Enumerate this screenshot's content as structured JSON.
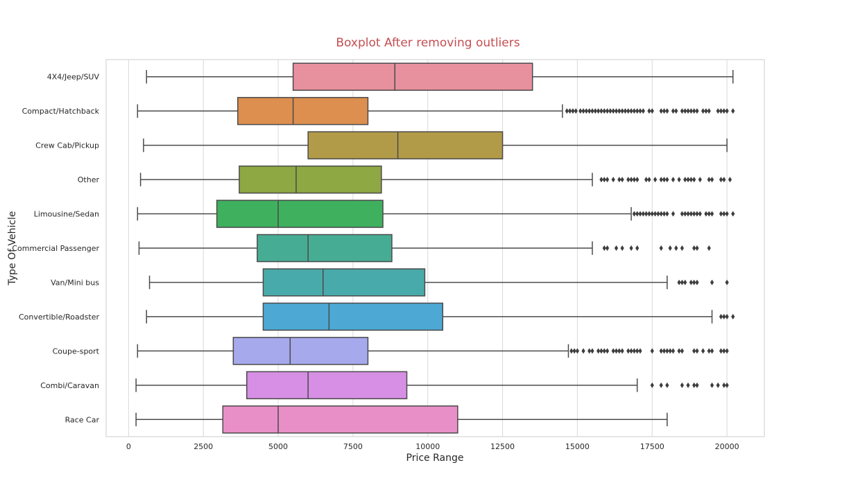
{
  "chart_data": {
    "type": "boxplot",
    "orientation": "horizontal",
    "title": "Boxplot After removing outliers",
    "xlabel": "Price Range",
    "ylabel": "Type Of Vehicle",
    "xlim": [
      -750,
      21250
    ],
    "xticks": [
      0,
      2500,
      5000,
      7500,
      10000,
      12500,
      15000,
      17500,
      20000
    ],
    "grid": "vertical",
    "categories": [
      "4X4/Jeep/SUV",
      "Compact/Hatchback",
      "Crew Cab/Pickup",
      "Other",
      "Limousine/Sedan",
      "Commercial Passenger",
      "Van/Mini bus",
      "Convertible/Roadster",
      "Coupe-sport",
      "Combi/Caravan",
      "Race Car"
    ],
    "series": [
      {
        "category": "4X4/Jeep/SUV",
        "color": "#e8919e",
        "whisker_low": 600,
        "q1": 5500,
        "median": 8900,
        "q3": 13500,
        "whisker_high": 20200,
        "outliers": []
      },
      {
        "category": "Compact/Hatchback",
        "color": "#dc8f4f",
        "whisker_low": 300,
        "q1": 3650,
        "median": 5500,
        "q3": 8000,
        "whisker_high": 14500,
        "outliers": [
          14650,
          14750,
          14850,
          14950,
          15100,
          15200,
          15300,
          15400,
          15500,
          15600,
          15700,
          15800,
          15900,
          16000,
          16100,
          16200,
          16300,
          16400,
          16500,
          16600,
          16700,
          16800,
          16900,
          17000,
          17100,
          17200,
          17400,
          17500,
          17800,
          17900,
          18000,
          18200,
          18300,
          18500,
          18600,
          18700,
          18800,
          18900,
          19000,
          19200,
          19300,
          19400,
          19700,
          19800,
          19900,
          20000,
          20200
        ]
      },
      {
        "category": "Crew Cab/Pickup",
        "color": "#b29b48",
        "whisker_low": 500,
        "q1": 6000,
        "median": 9000,
        "q3": 12500,
        "whisker_high": 20000,
        "outliers": []
      },
      {
        "category": "Other",
        "color": "#8ea843",
        "whisker_low": 400,
        "q1": 3700,
        "median": 5600,
        "q3": 8450,
        "whisker_high": 15500,
        "outliers": [
          15800,
          15900,
          16000,
          16200,
          16400,
          16500,
          16700,
          16800,
          16900,
          17000,
          17300,
          17400,
          17600,
          17800,
          17900,
          18000,
          18200,
          18400,
          18600,
          18700,
          18800,
          18900,
          19100,
          19400,
          19500,
          19800,
          19900,
          20100
        ]
      },
      {
        "category": "Limousine/Sedan",
        "color": "#3fb15e",
        "whisker_low": 300,
        "q1": 2950,
        "median": 5000,
        "q3": 8500,
        "whisker_high": 16800,
        "outliers": [
          16900,
          17000,
          17100,
          17200,
          17300,
          17400,
          17500,
          17600,
          17700,
          17800,
          17900,
          18000,
          18200,
          18500,
          18600,
          18700,
          18800,
          18900,
          19000,
          19100,
          19300,
          19400,
          19500,
          19800,
          19900,
          20000,
          20200
        ]
      },
      {
        "category": "Commercial Passenger",
        "color": "#47ac94",
        "whisker_low": 350,
        "q1": 4300,
        "median": 6000,
        "q3": 8800,
        "whisker_high": 15500,
        "outliers": [
          15900,
          16000,
          16300,
          16500,
          16800,
          17000,
          17800,
          18100,
          18300,
          18500,
          18900,
          19000,
          19400
        ]
      },
      {
        "category": "Van/Mini bus",
        "color": "#49aaab",
        "whisker_low": 700,
        "q1": 4500,
        "median": 6500,
        "q3": 9900,
        "whisker_high": 18000,
        "outliers": [
          18400,
          18500,
          18600,
          18800,
          18900,
          19000,
          19500,
          20000
        ]
      },
      {
        "category": "Convertible/Roadster",
        "color": "#4da9d4",
        "whisker_low": 600,
        "q1": 4500,
        "median": 6700,
        "q3": 10500,
        "whisker_high": 19500,
        "outliers": [
          19800,
          19900,
          20000,
          20200
        ]
      },
      {
        "category": "Coupe-sport",
        "color": "#a6a9ec",
        "whisker_low": 300,
        "q1": 3500,
        "median": 5400,
        "q3": 8000,
        "whisker_high": 14700,
        "outliers": [
          14800,
          14900,
          15000,
          15200,
          15400,
          15500,
          15700,
          15800,
          15900,
          16000,
          16200,
          16300,
          16400,
          16500,
          16700,
          16800,
          16900,
          17000,
          17100,
          17500,
          17800,
          17900,
          18000,
          18100,
          18200,
          18400,
          18500,
          18900,
          19000,
          19200,
          19400,
          19500,
          19800,
          19900,
          20000
        ]
      },
      {
        "category": "Combi/Caravan",
        "color": "#d68fe4",
        "whisker_low": 250,
        "q1": 3950,
        "median": 6000,
        "q3": 9300,
        "whisker_high": 17000,
        "outliers": [
          17500,
          17800,
          18000,
          18500,
          18700,
          18900,
          19000,
          19500,
          19700,
          19900,
          20000
        ]
      },
      {
        "category": "Race Car",
        "color": "#e88fc7",
        "whisker_low": 250,
        "q1": 3150,
        "median": 5000,
        "q3": 11000,
        "whisker_high": 18000,
        "outliers": []
      }
    ]
  }
}
